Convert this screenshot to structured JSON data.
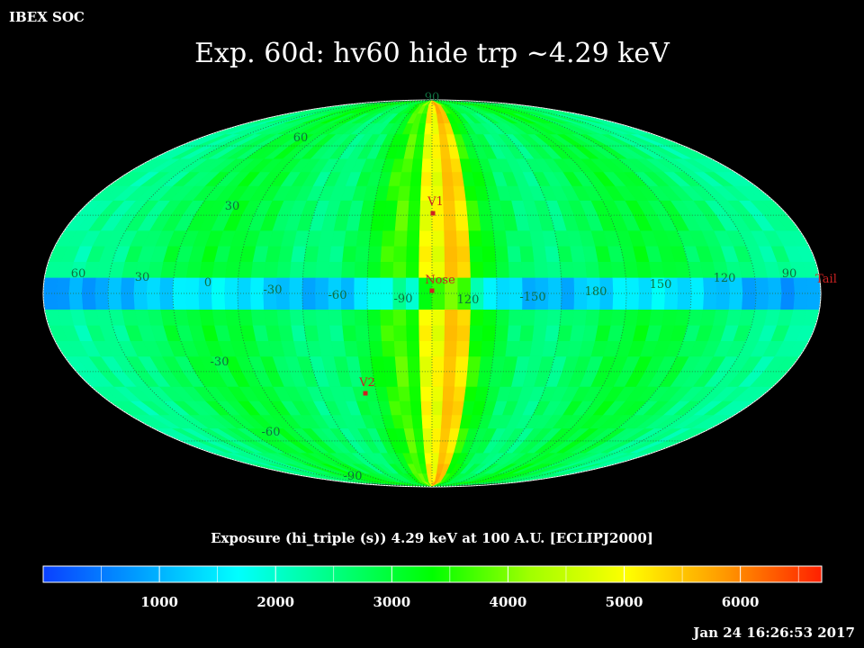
{
  "header": {
    "left_label": "IBEX SOC",
    "title": "Exp.   60d: hv60 hide trp ~4.29 keV"
  },
  "footer": {
    "timestamp": "Jan 24 16:26:53 2017"
  },
  "chart_data": {
    "type": "heatmap",
    "projection": "mollweide",
    "title": "Exp.   60d: hv60 hide trp ~4.29 keV",
    "grid": true,
    "longitude_labels": [
      "60",
      "30",
      "0",
      "-30",
      "-60",
      "-90",
      "120",
      "-150",
      "180",
      "150",
      "120",
      "90"
    ],
    "latitude_labels": [
      "90",
      "60",
      "30",
      "-30",
      "-60",
      "-90"
    ],
    "markers": [
      {
        "name": "V1",
        "color": "#cc2222"
      },
      {
        "name": "Nose",
        "color": "#cc2222"
      },
      {
        "name": "V2",
        "color": "#cc2222"
      },
      {
        "name": "Tail",
        "color": "#cc2222"
      }
    ],
    "colorbar": {
      "label": "Exposure (hi_triple (s))  4.29 keV at 100 A.U. [ECLIPJ2000]",
      "range": [
        0,
        6700
      ],
      "ticks": [
        "1000",
        "2000",
        "3000",
        "4000",
        "5000",
        "6000"
      ],
      "colors": [
        "#0a40ff",
        "#00a0ff",
        "#00ffff",
        "#00ff80",
        "#00ff00",
        "#a0ff00",
        "#ffff00",
        "#ff9900",
        "#ff2000"
      ]
    }
  }
}
